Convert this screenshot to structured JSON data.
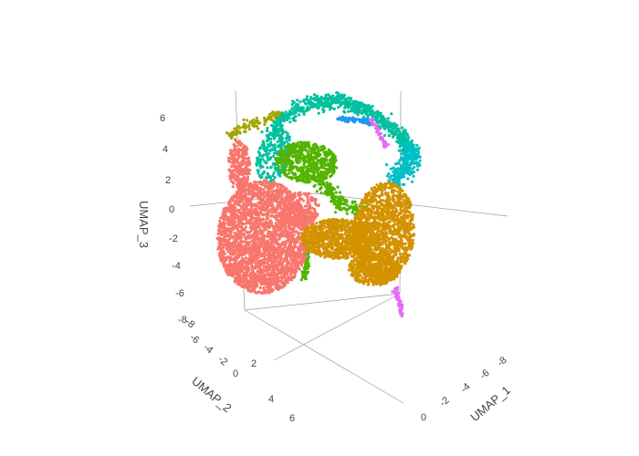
{
  "chart_data": {
    "type": "scatter",
    "projection": "3d",
    "title": "",
    "grid": true,
    "legend": "none",
    "axes": {
      "x": {
        "label": "UMAP_1",
        "ticks": [
          "0",
          "-2",
          "-4",
          "-6",
          "-8"
        ]
      },
      "y": {
        "label": "UMAP_2",
        "ticks": [
          "-8",
          "-6",
          "-4",
          "-2",
          "0",
          "2",
          "4",
          "6"
        ]
      },
      "z": {
        "label": "UMAP_3",
        "ticks": [
          "6",
          "4",
          "2",
          "0",
          "-2",
          "-4",
          "-6",
          "-8"
        ],
        "range": [
          -8,
          7
        ]
      }
    },
    "colors": [
      "#f8766d",
      "#d39200",
      "#93aa00",
      "#00ba38",
      "#00c19f",
      "#00b9e3",
      "#619cff",
      "#db72fb",
      "#ff61c3",
      "#53b400"
    ],
    "series": [
      {
        "color": "#f8766d",
        "approx_points": 9000,
        "center_z": -3
      },
      {
        "color": "#d39200",
        "approx_points": 6000,
        "center_z": -3
      },
      {
        "color": "#00c19f",
        "approx_points": 2500,
        "center_z": 3
      },
      {
        "color": "#53b400",
        "approx_points": 1800,
        "center_z": 2
      },
      {
        "color": "#00bfc4",
        "approx_points": 800,
        "center_z": 3
      },
      {
        "color": "#a3a500",
        "approx_points": 300,
        "center_z": 5
      },
      {
        "color": "#2196f3",
        "approx_points": 150,
        "center_z": 6
      },
      {
        "color": "#e76bf3",
        "approx_points": 200,
        "center_z": -5
      }
    ]
  }
}
